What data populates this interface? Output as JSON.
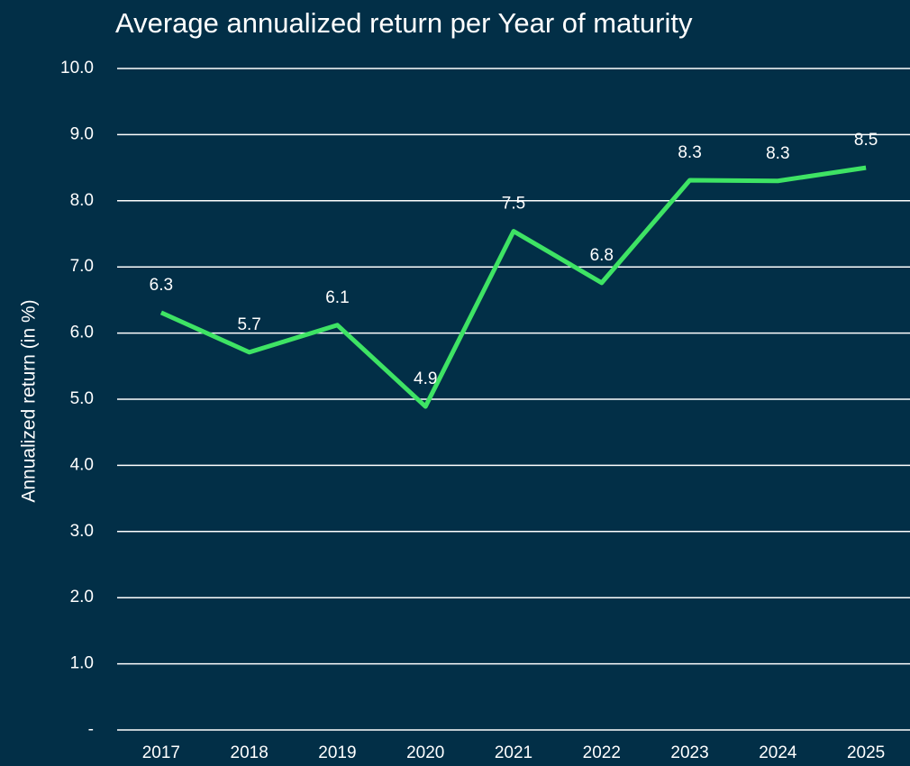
{
  "chart_data": {
    "type": "line",
    "title": "Average annualized return per Year of maturity",
    "ylabel": "Annualized return (in %)",
    "categories": [
      "2017",
      "2018",
      "2019",
      "2020",
      "2021",
      "2022",
      "2023",
      "2024",
      "2025"
    ],
    "series": [
      {
        "color": "#3ee364",
        "values": [
          6.31,
          5.71,
          6.12,
          4.89,
          7.54,
          6.76,
          8.31,
          8.3,
          8.5
        ],
        "value_labels": [
          "6.3",
          "5.7",
          "6.1",
          "4.9",
          "7.5",
          "6.8",
          "8.3",
          "8.3",
          "8.5"
        ]
      }
    ],
    "ylim": [
      0,
      10
    ],
    "yticks": [
      {
        "value": 0,
        "label": "-"
      },
      {
        "value": 1,
        "label": "1.0"
      },
      {
        "value": 2,
        "label": "2.0"
      },
      {
        "value": 3,
        "label": "3.0"
      },
      {
        "value": 4,
        "label": "4.0"
      },
      {
        "value": 5,
        "label": "5.0"
      },
      {
        "value": 6,
        "label": "6.0"
      },
      {
        "value": 7,
        "label": "7.0"
      },
      {
        "value": 8,
        "label": "8.0"
      },
      {
        "value": 9,
        "label": "9.0"
      },
      {
        "value": 10,
        "label": "10.0"
      }
    ],
    "grid": true
  }
}
